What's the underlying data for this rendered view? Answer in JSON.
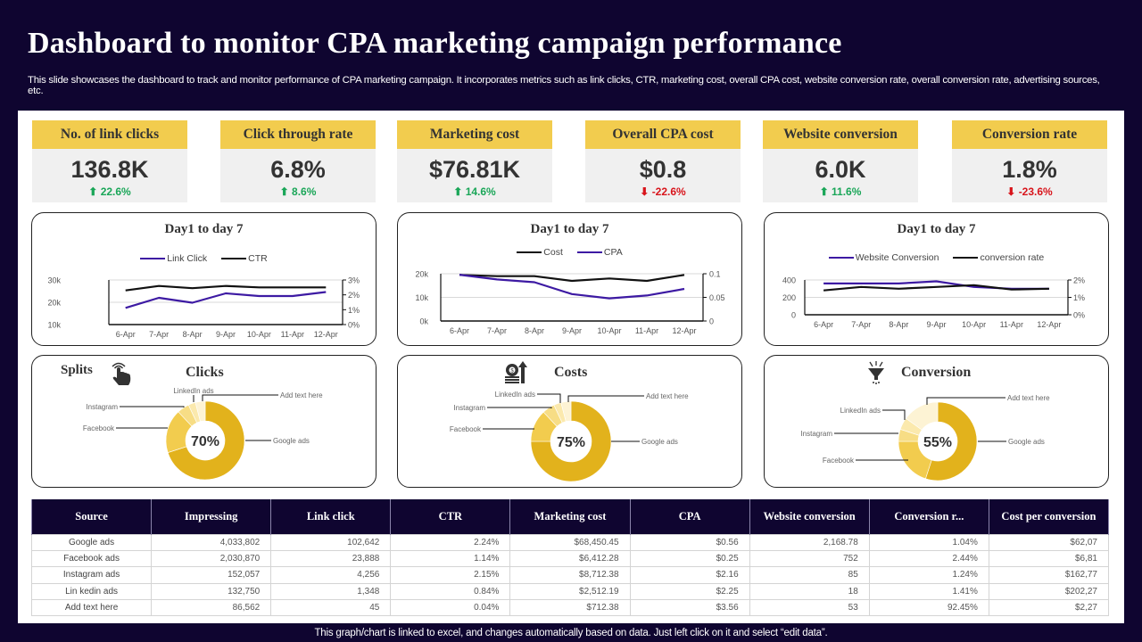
{
  "header": {
    "title": "Dashboard to monitor  CPA marketing  campaign performance",
    "subtitle": "This slide showcases the dashboard to track and monitor performance of CPA marketing campaign. It incorporates metrics such as link clicks, CTR, marketing cost, overall CPA cost, website conversion rate, overall conversion rate, advertising sources, etc."
  },
  "colors": {
    "background": "#0f0530",
    "kpi_header": "#f2cc4e",
    "up": "#1aa658",
    "down": "#d8141b",
    "purple_line": "#3d1aa3",
    "black_line": "#111111",
    "donut_main": "#e2b21c"
  },
  "kpis": [
    {
      "label": "No. of link clicks",
      "value": "136.8K",
      "delta": "22.6%",
      "direction": "up",
      "arrow": "⬆"
    },
    {
      "label": "Click through  rate",
      "value": "6.8%",
      "delta": " 8.6%",
      "direction": "up",
      "arrow": "⬆"
    },
    {
      "label": "Marketing cost",
      "value": "$76.81K",
      "delta": "14.6%",
      "direction": "up",
      "arrow": "⬆"
    },
    {
      "label": "Overall CPA cost",
      "value": "$0.8",
      "delta": "-22.6%",
      "direction": "down",
      "arrow": "⬇"
    },
    {
      "label": "Website conversion",
      "value": "6.0K",
      "delta": "11.6%",
      "direction": "up",
      "arrow": "⬆"
    },
    {
      "label": "Conversion rate",
      "value": "1.8%",
      "delta": "-23.6%",
      "direction": "down",
      "arrow": "⬇"
    }
  ],
  "chart_data": [
    {
      "type": "line",
      "title": "Day1 to day 7",
      "x": [
        "6-Apr",
        "7-Apr",
        "8-Apr",
        "9-Apr",
        "10-Apr",
        "11-Apr",
        "12-Apr"
      ],
      "y_left": {
        "ticks": [
          "10k",
          "20k",
          "30k"
        ],
        "range": [
          10000,
          30000
        ]
      },
      "y_right": {
        "ticks": [
          "0%",
          "1%",
          "2%",
          "3%"
        ],
        "range": [
          0,
          3
        ]
      },
      "series": [
        {
          "name": "Link Click",
          "axis": "left",
          "color": "#3d1aa3",
          "values": [
            17500,
            22000,
            19800,
            24000,
            22800,
            22800,
            24600
          ]
        },
        {
          "name": "CTR",
          "axis": "right",
          "color": "#111111",
          "values": [
            2.3,
            2.6,
            2.45,
            2.6,
            2.5,
            2.5,
            2.5
          ]
        }
      ],
      "legend": "top"
    },
    {
      "type": "line",
      "title": "Day1 to day 7",
      "x": [
        "6-Apr",
        "7-Apr",
        "8-Apr",
        "9-Apr",
        "10-Apr",
        "11-Apr",
        "12-Apr"
      ],
      "y_left": {
        "ticks": [
          "0k",
          "10k",
          "20k"
        ],
        "range": [
          0,
          20000
        ]
      },
      "y_right": {
        "ticks": [
          "0",
          "0.05",
          "0.1"
        ],
        "range": [
          0,
          0.1
        ]
      },
      "series": [
        {
          "name": "Cost",
          "axis": "left",
          "color": "#111111",
          "values": [
            19500,
            19000,
            19000,
            17000,
            18000,
            17000,
            19500
          ]
        },
        {
          "name": "CPA",
          "axis": "right",
          "color": "#3d1aa3",
          "values": [
            0.098,
            0.088,
            0.082,
            0.057,
            0.048,
            0.054,
            0.068
          ]
        }
      ],
      "legend": "top"
    },
    {
      "type": "line",
      "title": "Day1 to day 7",
      "x": [
        "6-Apr",
        "7-Apr",
        "8-Apr",
        "9-Apr",
        "10-Apr",
        "11-Apr",
        "12-Apr"
      ],
      "y_left": {
        "ticks": [
          "0",
          "200",
          "400"
        ],
        "range": [
          0,
          400
        ]
      },
      "y_right": {
        "ticks": [
          "0%",
          "1%",
          "2%"
        ],
        "range": [
          0,
          2
        ]
      },
      "series": [
        {
          "name": "Website Conversion",
          "axis": "left",
          "color": "#3d1aa3",
          "values": [
            360,
            360,
            360,
            385,
            320,
            300,
            300
          ]
        },
        {
          "name": "conversion rate",
          "axis": "right",
          "color": "#111111",
          "values": [
            1.4,
            1.6,
            1.5,
            1.6,
            1.7,
            1.45,
            1.5
          ]
        }
      ],
      "legend": "top"
    },
    {
      "type": "pie",
      "title": "Clicks",
      "center_label": "70%",
      "slices": [
        {
          "name": "Google ads",
          "value": 70,
          "color": "#e2b21c"
        },
        {
          "name": "Facebook",
          "value": 18,
          "color": "#f2cc4e"
        },
        {
          "name": "Instagram",
          "value": 5,
          "color": "#f7dd85"
        },
        {
          "name": "LinkedIn ads",
          "value": 3,
          "color": "#fbe9ad"
        },
        {
          "name": "Add text here",
          "value": 4,
          "color": "#fdf3d4"
        }
      ]
    },
    {
      "type": "pie",
      "title": "Costs",
      "center_label": "75%",
      "slices": [
        {
          "name": "Google ads",
          "value": 75,
          "color": "#e2b21c"
        },
        {
          "name": "Facebook",
          "value": 13,
          "color": "#f2cc4e"
        },
        {
          "name": "Instagram",
          "value": 5,
          "color": "#f7dd85"
        },
        {
          "name": "LinkedIn ads",
          "value": 3,
          "color": "#fbe9ad"
        },
        {
          "name": "Add text here",
          "value": 4,
          "color": "#fdf3d4"
        }
      ]
    },
    {
      "type": "pie",
      "title": "Conversion",
      "center_label": "55%",
      "slices": [
        {
          "name": "Google ads",
          "value": 55,
          "color": "#e2b21c"
        },
        {
          "name": "Facebook",
          "value": 20,
          "color": "#f2cc4e"
        },
        {
          "name": "Instagram",
          "value": 5,
          "color": "#f7dd85"
        },
        {
          "name": "LinkedIn ads",
          "value": 5,
          "color": "#fbe9ad"
        },
        {
          "name": "Add text here",
          "value": 15,
          "color": "#fdf3d4"
        }
      ]
    }
  ],
  "splits_label": "Splits",
  "table": {
    "headers": [
      "Source",
      "Impressing",
      "Link click",
      "CTR",
      "Marketing cost",
      "CPA",
      "Website conversion",
      "Conversion r...",
      "Cost per conversion"
    ],
    "rows": [
      [
        "Google ads",
        "4,033,802",
        "102,642",
        "2.24%",
        "$68,450.45",
        "$0.56",
        "2,168.78",
        "1.04%",
        "$62,07"
      ],
      [
        "Facebook ads",
        "2,030,870",
        "23,888",
        "1.14%",
        "$6,412.28",
        "$0.25",
        "752",
        "2.44%",
        "$6,81"
      ],
      [
        "Instagram ads",
        "152,057",
        "4,256",
        "2.15%",
        "$8,712.38",
        "$2.16",
        "85",
        "1.24%",
        "$162,77"
      ],
      [
        "Lin kedin ads",
        "132,750",
        "1,348",
        "0.84%",
        "$2,512.19",
        "$2.25",
        "18",
        "1.41%",
        "$202,27"
      ],
      [
        "Add  text here",
        "86,562",
        "45",
        "0.04%",
        "$712.38",
        "$3.56",
        "53",
        "92.45%",
        "$2,27"
      ]
    ]
  },
  "footer": "This graph/chart is linked to excel,  and changes automatically based on data. Just left click on it and select “edit data”."
}
